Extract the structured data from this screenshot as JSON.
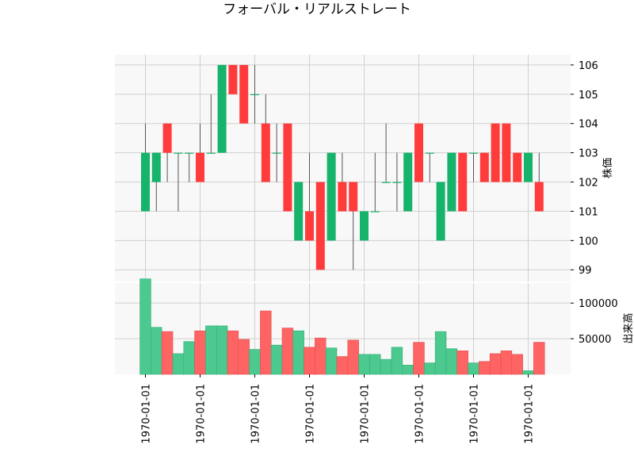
{
  "chart_data": {
    "type": "candlestick",
    "title": "フォーバル・リアルストレート",
    "price_ylabel": "株価",
    "volume_ylabel": "出来高",
    "price_ylim": [
      98.6,
      106.35
    ],
    "price_yticks": [
      99,
      100,
      101,
      102,
      103,
      104,
      105,
      106
    ],
    "volume_ylim": [
      0,
      128000
    ],
    "volume_yticks": [
      50000,
      100000
    ],
    "x_tick_labels": [
      "1970-01-01",
      "1970-01-01",
      "1970-01-01",
      "1970-01-01",
      "1970-01-01",
      "1970-01-01",
      "1970-01-01",
      "1970-01-01"
    ],
    "x_tick_indices": [
      0,
      5,
      10,
      15,
      20,
      25,
      30,
      35
    ],
    "grid": true,
    "colors": {
      "up": "#16b36b",
      "down": "#ff3b3b",
      "wick": "#555555",
      "up_volume": "#4cc98f",
      "down_volume": "#ff6464",
      "grid": "#d0d0d0",
      "panel": "#f8f8f8"
    },
    "candles": [
      {
        "open": 101,
        "high": 104,
        "low": 101,
        "close": 103,
        "volume": 134000
      },
      {
        "open": 102,
        "high": 103,
        "low": 101,
        "close": 103,
        "volume": 66000
      },
      {
        "open": 104,
        "high": 104,
        "low": 102,
        "close": 103,
        "volume": 60000
      },
      {
        "open": 103,
        "high": 103,
        "low": 101,
        "close": 103,
        "volume": 29000
      },
      {
        "open": 103,
        "high": 103,
        "low": 102,
        "close": 103,
        "volume": 46000
      },
      {
        "open": 103,
        "high": 104,
        "low": 102,
        "close": 102,
        "volume": 61000
      },
      {
        "open": 103,
        "high": 105,
        "low": 103,
        "close": 103,
        "volume": 68000
      },
      {
        "open": 103,
        "high": 106,
        "low": 103,
        "close": 106,
        "volume": 68000
      },
      {
        "open": 106,
        "high": 106,
        "low": 105,
        "close": 105,
        "volume": 61000
      },
      {
        "open": 106,
        "high": 106,
        "low": 104,
        "close": 104,
        "volume": 49000
      },
      {
        "open": 105,
        "high": 106,
        "low": 104,
        "close": 105,
        "volume": 35000
      },
      {
        "open": 104,
        "high": 105,
        "low": 102,
        "close": 102,
        "volume": 89000
      },
      {
        "open": 103,
        "high": 104,
        "low": 102,
        "close": 103,
        "volume": 41000
      },
      {
        "open": 104,
        "high": 104,
        "low": 101,
        "close": 101,
        "volume": 65000
      },
      {
        "open": 100,
        "high": 102,
        "low": 100,
        "close": 102,
        "volume": 61000
      },
      {
        "open": 101,
        "high": 103,
        "low": 100,
        "close": 100,
        "volume": 38000
      },
      {
        "open": 102,
        "high": 102,
        "low": 99,
        "close": 99,
        "volume": 51000
      },
      {
        "open": 100,
        "high": 103,
        "low": 100,
        "close": 103,
        "volume": 37000
      },
      {
        "open": 102,
        "high": 103,
        "low": 101,
        "close": 101,
        "volume": 25000
      },
      {
        "open": 102,
        "high": 102,
        "low": 99,
        "close": 101,
        "volume": 48000
      },
      {
        "open": 100,
        "high": 101,
        "low": 100,
        "close": 101,
        "volume": 28000
      },
      {
        "open": 101,
        "high": 103,
        "low": 101,
        "close": 101,
        "volume": 28000
      },
      {
        "open": 102,
        "high": 104,
        "low": 102,
        "close": 102,
        "volume": 21000
      },
      {
        "open": 102,
        "high": 103,
        "low": 101,
        "close": 102,
        "volume": 38000
      },
      {
        "open": 101,
        "high": 103,
        "low": 101,
        "close": 103,
        "volume": 13000
      },
      {
        "open": 104,
        "high": 104,
        "low": 102,
        "close": 102,
        "volume": 45000
      },
      {
        "open": 103,
        "high": 103,
        "low": 102,
        "close": 103,
        "volume": 16000
      },
      {
        "open": 100,
        "high": 102,
        "low": 100,
        "close": 102,
        "volume": 60000
      },
      {
        "open": 101,
        "high": 103,
        "low": 101,
        "close": 103,
        "volume": 36000
      },
      {
        "open": 103,
        "high": 103,
        "low": 101,
        "close": 101,
        "volume": 33000
      },
      {
        "open": 103,
        "high": 103,
        "low": 102,
        "close": 103,
        "volume": 16000
      },
      {
        "open": 103,
        "high": 103,
        "low": 102,
        "close": 102,
        "volume": 18000
      },
      {
        "open": 104,
        "high": 104,
        "low": 102,
        "close": 102,
        "volume": 29000
      },
      {
        "open": 104,
        "high": 104,
        "low": 102,
        "close": 102,
        "volume": 33000
      },
      {
        "open": 103,
        "high": 103,
        "low": 102,
        "close": 102,
        "volume": 28000
      },
      {
        "open": 102,
        "high": 103,
        "low": 102,
        "close": 103,
        "volume": 5000
      },
      {
        "open": 102,
        "high": 103,
        "low": 101,
        "close": 101,
        "volume": 45000
      }
    ]
  }
}
